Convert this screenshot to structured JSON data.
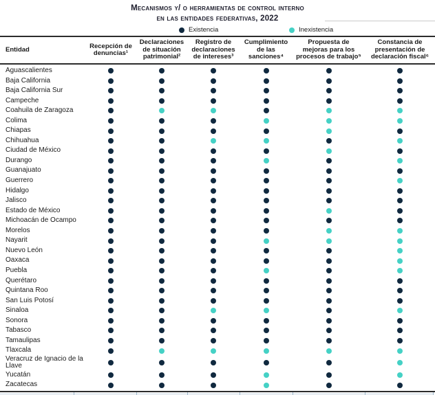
{
  "title": {
    "line1": "Mecanismos y/ o herramientas de control interno",
    "line2": "en las entidades federativas, 2022"
  },
  "legend": {
    "existencia": {
      "label": "Existencia",
      "color": "#10293f"
    },
    "inexistencia": {
      "label": "Inexistencia",
      "color": "#45d1c5"
    }
  },
  "table": {
    "entity_header": "Entidad",
    "columns": [
      "Recepción de denuncias¹",
      "Declaraciones de situación patrimonial²",
      "Registro de declaraciones de intereses³",
      "Cumplimiento de las sanciones⁴",
      "Propuesta de mejoras para los procesos de trabajo⁵",
      "Constancia de presentación de declaración fiscal⁶"
    ],
    "rows": [
      {
        "entity": "Aguascalientes",
        "values": [
          1,
          1,
          1,
          1,
          1,
          1
        ]
      },
      {
        "entity": "Baja California",
        "values": [
          1,
          1,
          1,
          1,
          1,
          1
        ]
      },
      {
        "entity": "Baja California Sur",
        "values": [
          1,
          1,
          1,
          1,
          1,
          1
        ]
      },
      {
        "entity": "Campeche",
        "values": [
          1,
          1,
          1,
          1,
          1,
          1
        ]
      },
      {
        "entity": "Coahuila de Zaragoza",
        "values": [
          1,
          0,
          0,
          1,
          0,
          0
        ]
      },
      {
        "entity": "Colima",
        "values": [
          1,
          1,
          1,
          0,
          0,
          0
        ]
      },
      {
        "entity": "Chiapas",
        "values": [
          1,
          1,
          1,
          1,
          0,
          1
        ]
      },
      {
        "entity": "Chihuahua",
        "values": [
          1,
          1,
          0,
          0,
          1,
          0
        ]
      },
      {
        "entity": "Ciudad de México",
        "values": [
          1,
          1,
          1,
          1,
          0,
          1
        ]
      },
      {
        "entity": "Durango",
        "values": [
          1,
          1,
          1,
          0,
          1,
          0
        ]
      },
      {
        "entity": "Guanajuato",
        "values": [
          1,
          1,
          1,
          1,
          1,
          1
        ]
      },
      {
        "entity": "Guerrero",
        "values": [
          1,
          1,
          1,
          1,
          1,
          0
        ]
      },
      {
        "entity": "Hidalgo",
        "values": [
          1,
          1,
          1,
          1,
          1,
          1
        ]
      },
      {
        "entity": "Jalisco",
        "values": [
          1,
          1,
          1,
          1,
          1,
          1
        ]
      },
      {
        "entity": "Estado de México",
        "values": [
          1,
          1,
          1,
          1,
          0,
          1
        ]
      },
      {
        "entity": "Michoacán de Ocampo",
        "values": [
          1,
          1,
          1,
          1,
          1,
          1
        ]
      },
      {
        "entity": "Morelos",
        "values": [
          1,
          1,
          1,
          1,
          0,
          0
        ]
      },
      {
        "entity": "Nayarit",
        "values": [
          1,
          1,
          1,
          0,
          0,
          0
        ]
      },
      {
        "entity": "Nuevo León",
        "values": [
          1,
          1,
          1,
          1,
          1,
          0
        ]
      },
      {
        "entity": "Oaxaca",
        "values": [
          1,
          1,
          1,
          1,
          1,
          0
        ]
      },
      {
        "entity": "Puebla",
        "values": [
          1,
          1,
          1,
          0,
          1,
          0
        ]
      },
      {
        "entity": "Querétaro",
        "values": [
          1,
          1,
          1,
          1,
          1,
          1
        ]
      },
      {
        "entity": "Quintana Roo",
        "values": [
          1,
          1,
          1,
          1,
          1,
          1
        ]
      },
      {
        "entity": "San Luis Potosí",
        "values": [
          1,
          1,
          1,
          1,
          1,
          1
        ]
      },
      {
        "entity": "Sinaloa",
        "values": [
          1,
          1,
          0,
          0,
          1,
          0
        ]
      },
      {
        "entity": "Sonora",
        "values": [
          1,
          1,
          1,
          1,
          1,
          1
        ]
      },
      {
        "entity": "Tabasco",
        "values": [
          1,
          1,
          1,
          1,
          1,
          1
        ]
      },
      {
        "entity": "Tamaulipas",
        "values": [
          1,
          1,
          1,
          1,
          1,
          1
        ]
      },
      {
        "entity": "Tlaxcala",
        "values": [
          1,
          0,
          0,
          0,
          0,
          0
        ]
      },
      {
        "entity": "Veracruz de Ignacio de la Llave",
        "values": [
          1,
          1,
          1,
          1,
          1,
          0
        ]
      },
      {
        "entity": "Yucatán",
        "values": [
          1,
          1,
          1,
          0,
          1,
          0
        ]
      },
      {
        "entity": "Zacatecas",
        "values": [
          1,
          1,
          1,
          0,
          1,
          1
        ]
      }
    ]
  },
  "chart_data": {
    "type": "heatmap",
    "title": "Mecanismos y/ o herramientas de control interno en las entidades federativas, 2022",
    "legend": [
      "Existencia",
      "Inexistencia"
    ],
    "legend_position": "top",
    "value_encoding": {
      "1": "Existencia",
      "0": "Inexistencia"
    },
    "colors": {
      "Existencia": "#10293f",
      "Inexistencia": "#45d1c5"
    },
    "columns": [
      "Recepción de denuncias¹",
      "Declaraciones de situación patrimonial²",
      "Registro de declaraciones de intereses³",
      "Cumplimiento de las sanciones⁴",
      "Propuesta de mejoras para los procesos de trabajo⁵",
      "Constancia de presentación de declaración fiscal⁶"
    ],
    "categories": [
      "Aguascalientes",
      "Baja California",
      "Baja California Sur",
      "Campeche",
      "Coahuila de Zaragoza",
      "Colima",
      "Chiapas",
      "Chihuahua",
      "Ciudad de México",
      "Durango",
      "Guanajuato",
      "Guerrero",
      "Hidalgo",
      "Jalisco",
      "Estado de México",
      "Michoacán de Ocampo",
      "Morelos",
      "Nayarit",
      "Nuevo León",
      "Oaxaca",
      "Puebla",
      "Querétaro",
      "Quintana Roo",
      "San Luis Potosí",
      "Sinaloa",
      "Sonora",
      "Tabasco",
      "Tamaulipas",
      "Tlaxcala",
      "Veracruz de Ignacio de la Llave",
      "Yucatán",
      "Zacatecas"
    ],
    "values": [
      [
        1,
        1,
        1,
        1,
        1,
        1
      ],
      [
        1,
        1,
        1,
        1,
        1,
        1
      ],
      [
        1,
        1,
        1,
        1,
        1,
        1
      ],
      [
        1,
        1,
        1,
        1,
        1,
        1
      ],
      [
        1,
        0,
        0,
        1,
        0,
        0
      ],
      [
        1,
        1,
        1,
        0,
        0,
        0
      ],
      [
        1,
        1,
        1,
        1,
        0,
        1
      ],
      [
        1,
        1,
        0,
        0,
        1,
        0
      ],
      [
        1,
        1,
        1,
        1,
        0,
        1
      ],
      [
        1,
        1,
        1,
        0,
        1,
        0
      ],
      [
        1,
        1,
        1,
        1,
        1,
        1
      ],
      [
        1,
        1,
        1,
        1,
        1,
        0
      ],
      [
        1,
        1,
        1,
        1,
        1,
        1
      ],
      [
        1,
        1,
        1,
        1,
        1,
        1
      ],
      [
        1,
        1,
        1,
        1,
        0,
        1
      ],
      [
        1,
        1,
        1,
        1,
        1,
        1
      ],
      [
        1,
        1,
        1,
        1,
        0,
        0
      ],
      [
        1,
        1,
        1,
        0,
        0,
        0
      ],
      [
        1,
        1,
        1,
        1,
        1,
        0
      ],
      [
        1,
        1,
        1,
        1,
        1,
        0
      ],
      [
        1,
        1,
        1,
        0,
        1,
        0
      ],
      [
        1,
        1,
        1,
        1,
        1,
        1
      ],
      [
        1,
        1,
        1,
        1,
        1,
        1
      ],
      [
        1,
        1,
        1,
        1,
        1,
        1
      ],
      [
        1,
        1,
        0,
        0,
        1,
        0
      ],
      [
        1,
        1,
        1,
        1,
        1,
        1
      ],
      [
        1,
        1,
        1,
        1,
        1,
        1
      ],
      [
        1,
        1,
        1,
        1,
        1,
        1
      ],
      [
        1,
        0,
        0,
        0,
        0,
        0
      ],
      [
        1,
        1,
        1,
        1,
        1,
        0
      ],
      [
        1,
        1,
        1,
        0,
        1,
        0
      ],
      [
        1,
        1,
        1,
        0,
        1,
        1
      ]
    ]
  }
}
